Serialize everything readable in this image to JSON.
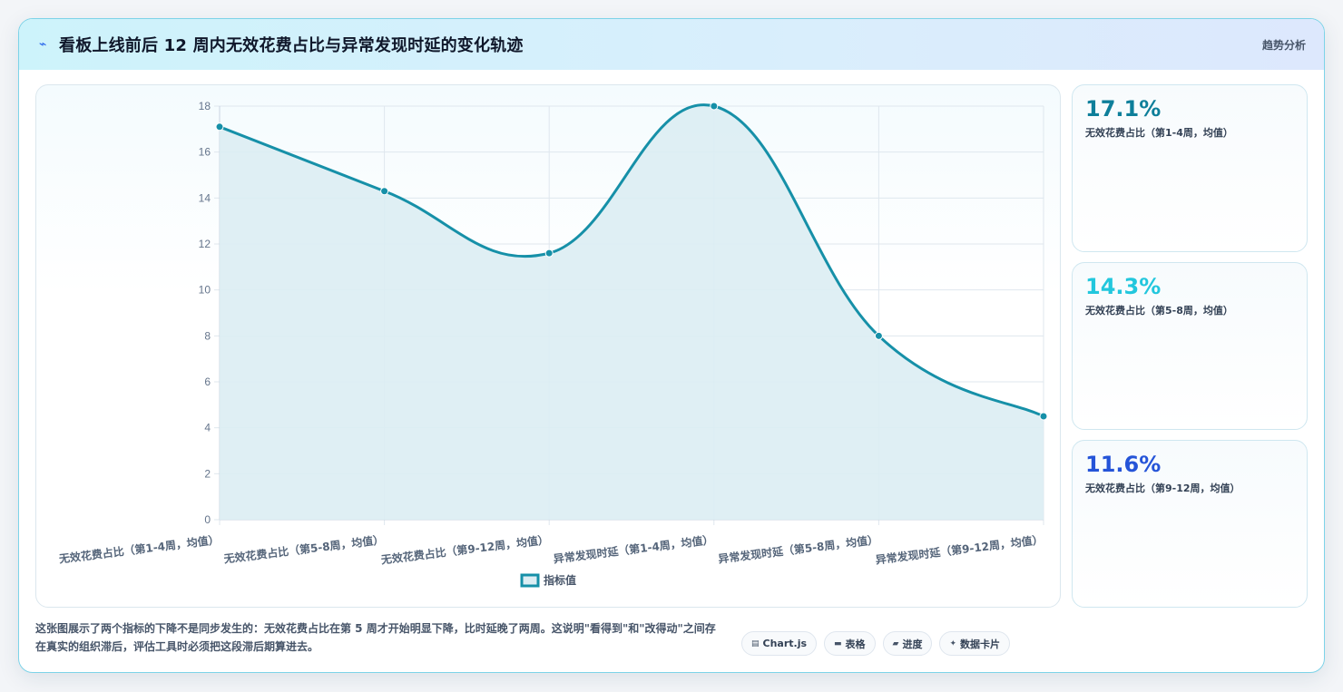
{
  "header": {
    "icon": "lightning-icon",
    "title": "看板上线前后 12 周内无效花费占比与异常发现时延的变化轨迹",
    "tag": "趋势分析"
  },
  "chart_data": {
    "type": "line",
    "fill": true,
    "smooth": true,
    "categories": [
      "无效花费占比（第1-4周，均值）",
      "无效花费占比（第5-8周，均值）",
      "无效花费占比（第9-12周，均值）",
      "异常发现时延（第1-4周，均值）",
      "异常发现时延（第5-8周，均值）",
      "异常发现时延（第9-12周，均值）"
    ],
    "series": [
      {
        "name": "指标值",
        "values": [
          17.1,
          14.3,
          11.6,
          18,
          8,
          4.5
        ]
      }
    ],
    "ylim": [
      0,
      18
    ],
    "yticks": [
      0,
      2,
      4,
      6,
      8,
      10,
      12,
      14,
      16,
      18
    ],
    "grid": true,
    "legend_position": "bottom",
    "colors": {
      "line": "#1690a8",
      "fill": "#dcedf3",
      "grid": "#dfe7ee",
      "tick": "#64748b"
    }
  },
  "stats": [
    {
      "value": "17.1%",
      "label": "无效花费占比（第1-4周，均值）",
      "color": "#0e7f9a"
    },
    {
      "value": "14.3%",
      "label": "无效花费占比（第5-8周，均值）",
      "color": "#22c7dd"
    },
    {
      "value": "11.6%",
      "label": "无效花费占比（第9-12周，均值）",
      "color": "#2554d8"
    }
  ],
  "footer": {
    "note": "这张图展示了两个指标的下降不是同步发生的：无效花费占比在第 5 周才开始明显下降，比时延晚了两周。这说明\"看得到\"和\"改得动\"之间存在真实的组织滞后，评估工具时必须把这段滞后期算进去。",
    "chips": [
      {
        "icon": "chart-icon",
        "glyph": "▤",
        "label": "Chart.js"
      },
      {
        "icon": "table-icon",
        "glyph": "▬",
        "label": "表格"
      },
      {
        "icon": "progress-icon",
        "glyph": "▰",
        "label": "进度"
      },
      {
        "icon": "sparkle-icon",
        "glyph": "✦",
        "label": "数据卡片"
      }
    ]
  }
}
